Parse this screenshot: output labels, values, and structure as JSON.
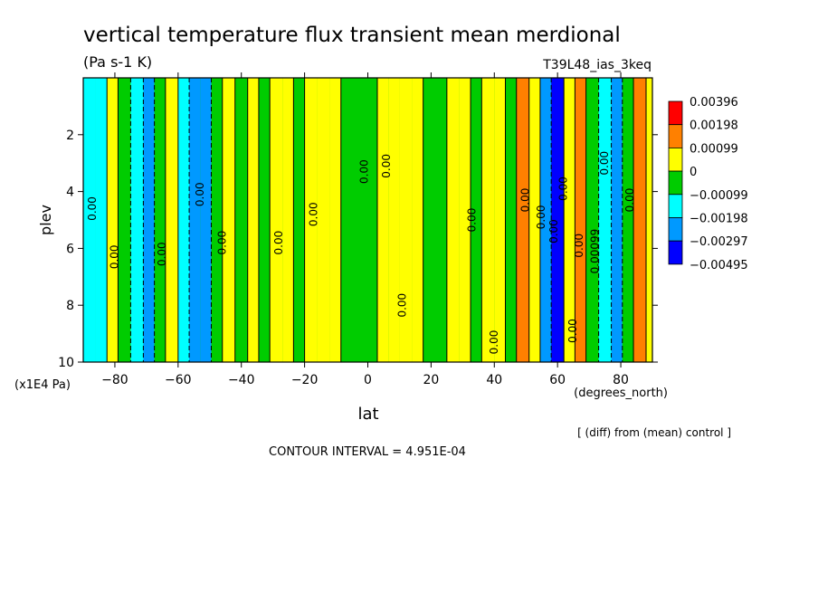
{
  "chart_data": {
    "type": "heatmap",
    "title": "vertical temperature flux transient mean merdional",
    "units": "(Pa s-1 K)",
    "experiment": "T39L48_ias_3keq",
    "xlabel": "lat",
    "x_units": "(degrees_north)",
    "ylabel": "plev",
    "y_units": "(x1E4 Pa)",
    "x_range": [
      -90,
      90
    ],
    "y_range": [
      0,
      10
    ],
    "y_inverted": true,
    "x_ticks": [
      -80,
      -60,
      -40,
      -20,
      0,
      20,
      40,
      60,
      80
    ],
    "x_tick_labels": [
      "−80",
      "−60",
      "−40",
      "−20",
      "0",
      "20",
      "40",
      "60",
      "80"
    ],
    "y_ticks": [
      2,
      4,
      6,
      8,
      10
    ],
    "y_tick_labels": [
      "2",
      "4",
      "6",
      "8",
      "10"
    ],
    "colorbar_levels": [
      0.00396,
      0.00198,
      0.00099,
      0,
      -0.00099,
      -0.00198,
      -0.00297,
      -0.00495
    ],
    "colorbar_labels": [
      "0.00396",
      "0.00198",
      "0.00099",
      "0",
      "−0.00099",
      "−0.00198",
      "−0.00297",
      "−0.00495"
    ],
    "colorbar_colors": [
      "#ff0000",
      "#ff8000",
      "#ffff00",
      "#00cc00",
      "#00ffff",
      "#0099ff",
      "#0000ff"
    ],
    "column_lats": [
      -88,
      -84,
      -81,
      -77,
      -73,
      -69,
      -66,
      -62,
      -58,
      -55,
      -51,
      -48,
      -44,
      -40,
      -36,
      -33,
      -29,
      -25,
      -22,
      -18,
      -14,
      -10,
      -7,
      -3,
      1,
      5,
      8,
      12,
      16,
      19,
      23,
      27,
      31,
      34,
      38,
      42,
      45,
      49,
      53,
      56,
      60,
      64,
      67,
      71,
      75,
      79,
      82,
      86,
      90
    ],
    "column_values": [
      -0.0019,
      -0.0012,
      0.0004,
      -0.0008,
      -0.0013,
      -0.0021,
      -0.0006,
      0.0003,
      -0.0011,
      -0.0022,
      -0.0029,
      -0.0006,
      0.0002,
      -0.0008,
      0.0003,
      -0.0006,
      0.0005,
      0.0002,
      -0.0007,
      0.0004,
      0.0006,
      0.0002,
      -0.0005,
      -0.0009,
      -0.0007,
      0.0004,
      0.0005,
      0.0006,
      0.0003,
      -0.0004,
      -0.0008,
      0.0004,
      0.0002,
      -0.0003,
      0.0006,
      0.0001,
      -0.0006,
      0.0012,
      0.0008,
      -0.0026,
      -0.0036,
      0.0009,
      0.0011,
      -0.0007,
      -0.0013,
      -0.0021,
      -0.0008,
      0.0015,
      0.0008
    ],
    "contour_annotations": [
      "0.00",
      "0.00",
      "0.00",
      "0.00",
      "0.00",
      "0.00",
      "0.00",
      "0.00",
      "0.00",
      "0.00",
      "0.00",
      "0.00",
      "0.00",
      "0.00",
      "0.00",
      "0.00",
      "0.00",
      "0.00",
      "0.00",
      "0.00",
      "0.00099"
    ],
    "contour_interval_text": "CONTOUR INTERVAL = 4.951E-04",
    "note": "[ (diff) from (mean) control ]"
  }
}
